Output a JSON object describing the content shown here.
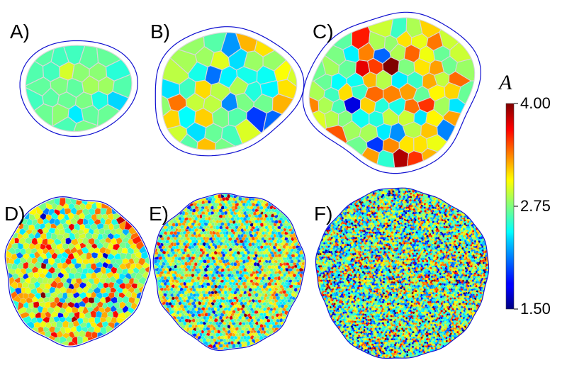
{
  "panels": [
    {
      "id": "A",
      "label": "A)",
      "cell_count": 40
    },
    {
      "id": "B",
      "label": "B)",
      "cell_count": 70
    },
    {
      "id": "C",
      "label": "C)",
      "cell_count": 110
    },
    {
      "id": "D",
      "label": "D)",
      "cell_count": 700
    },
    {
      "id": "E",
      "label": "E)",
      "cell_count": 2500
    },
    {
      "id": "F",
      "label": "F)",
      "cell_count": 9000
    }
  ],
  "colorbar": {
    "title": "A",
    "min": 1.5,
    "max": 4.0,
    "ticks": [
      "4.00",
      "2.75",
      "1.50"
    ],
    "colormap": "jet"
  },
  "colors": {
    "boundary": "#1010d0",
    "cell_edge": "#d8d8d8"
  }
}
